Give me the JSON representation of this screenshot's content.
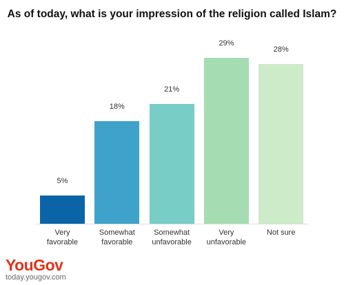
{
  "chart_data": {
    "type": "bar",
    "title": "As of today, what is your impression of the religion called Islam?",
    "categories": [
      "Very favorable",
      "Somewhat favorable",
      "Somewhat unfavorable",
      "Very unfavorable",
      "Not sure"
    ],
    "values": [
      5,
      18,
      21,
      29,
      28
    ],
    "value_labels": [
      "5%",
      "18%",
      "21%",
      "29%",
      "28%"
    ],
    "colors": [
      "#0b64a8",
      "#3fa2cb",
      "#78cdc6",
      "#a6dcb1",
      "#cdebc8"
    ],
    "logo": "YouGov",
    "source": "today.yougov.com"
  }
}
